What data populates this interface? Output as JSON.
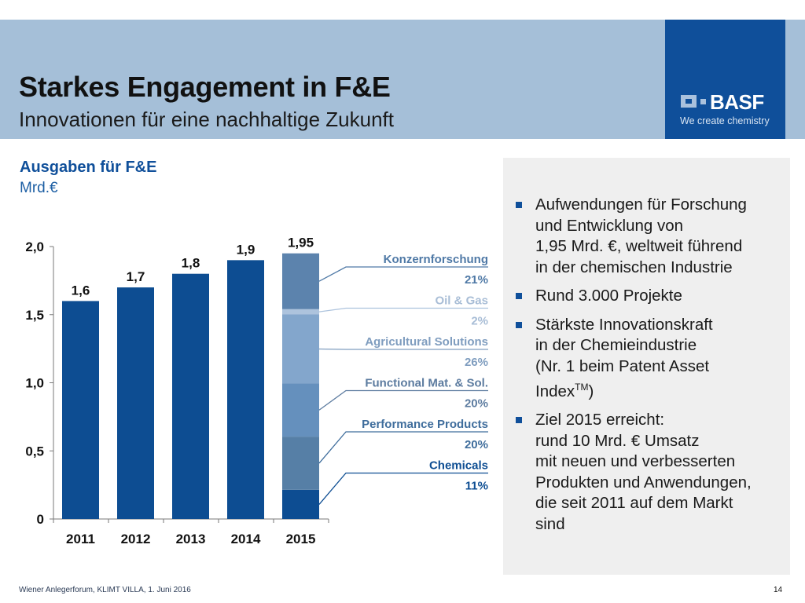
{
  "header": {
    "title": "Starkes Engagement in F&E",
    "subtitle": "Innovationen für eine nachhaltige Zukunft",
    "logo": {
      "name": "BASF",
      "tagline": "We create chemistry"
    }
  },
  "chart_panel": {
    "title": "Ausgaben für F&E",
    "unit": "Mrd.€"
  },
  "chart_data": {
    "type": "bar",
    "title": "Ausgaben für F&E",
    "ylabel": "Mrd.€",
    "xlabel": "",
    "categories": [
      "2011",
      "2012",
      "2013",
      "2014",
      "2015"
    ],
    "values": [
      1.6,
      1.7,
      1.8,
      1.9,
      1.95
    ],
    "value_labels": [
      "1,6",
      "1,7",
      "1,8",
      "1,9",
      "1,95"
    ],
    "ylim": [
      0,
      2.0
    ],
    "yticks": [
      0,
      0.5,
      1.0,
      1.5,
      2.0
    ],
    "ytick_labels": [
      "0",
      "0,5",
      "1,0",
      "1,5",
      "2,0"
    ],
    "grid": false,
    "bar_color": "#0d4d92",
    "breakdown_2015": {
      "category": "2015",
      "segments_bottom_to_top": [
        {
          "name": "Chemicals",
          "share_pct": 11,
          "label": "11%",
          "color": "#0d4d92",
          "text_color": "#0d4d92"
        },
        {
          "name": "Performance Products",
          "share_pct": 20,
          "label": "20%",
          "color": "#567fa6",
          "text_color": "#3f6d9c"
        },
        {
          "name": "Functional Mat. & Sol.",
          "share_pct": 20,
          "label": "20%",
          "color": "#6590bd",
          "text_color": "#5d7ca0"
        },
        {
          "name": "Agricultural Solutions",
          "share_pct": 26,
          "label": "26%",
          "color": "#83a6cc",
          "text_color": "#7f9dbf"
        },
        {
          "name": "Oil & Gas",
          "share_pct": 2,
          "label": "2%",
          "color": "#adc3dd",
          "text_color": "#a8bdd6"
        },
        {
          "name": "Konzernforschung",
          "share_pct": 21,
          "label": "21%",
          "color": "#5c83ad",
          "text_color": "#4f79a6"
        }
      ]
    }
  },
  "bullets": [
    {
      "lines": [
        "Aufwendungen für Forschung",
        "und Entwicklung von",
        "1,95 Mrd. €, weltweit führend",
        "in der chemischen Industrie"
      ]
    },
    {
      "lines": [
        "Rund 3.000 Projekte"
      ]
    },
    {
      "lines": [
        "Stärkste Innovationskraft",
        "in der Chemieindustrie",
        "(Nr. 1 beim Patent Asset",
        "Index"
      ],
      "sup": "TM",
      "after_sup": ")"
    },
    {
      "lines": [
        "Ziel 2015 erreicht:",
        "rund 10 Mrd. € Umsatz",
        "mit neuen und verbesserten",
        "Produkten und Anwendungen,",
        "die seit 2011 auf dem Markt",
        "sind"
      ]
    }
  ],
  "footer": {
    "text": "Wiener Anlegerforum, KLIMT VILLA, 1. Juni 2016",
    "page": "14"
  }
}
